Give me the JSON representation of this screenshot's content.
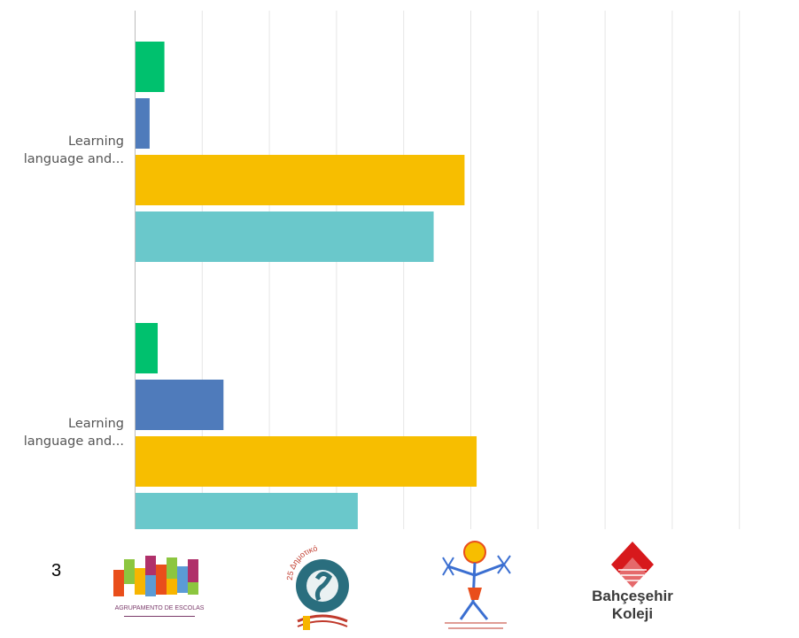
{
  "chart_data": {
    "type": "bar",
    "orientation": "horizontal",
    "categories": [
      "Learning language and...",
      "Learning language and..."
    ],
    "category_lines": [
      [
        "Learning",
        "language and..."
      ],
      [
        "Learning",
        "language and..."
      ]
    ],
    "series": [
      {
        "values": [
          0.43,
          0.33
        ],
        "color": "#00c16e"
      },
      {
        "values": [
          0.21,
          1.31
        ],
        "color": "#4f7bbb"
      },
      {
        "values": [
          4.9,
          5.08
        ],
        "color": "#f7be00"
      },
      {
        "values": [
          4.44,
          3.31
        ],
        "color": "#6ac8cb"
      }
    ],
    "xlim": [
      0,
      9
    ],
    "grid": true,
    "legend": "none"
  },
  "footer": {
    "page_number": "3",
    "logos": [
      {
        "name": "agrupamento-logo",
        "text": "AGRUPAMENTO DE ESCOLAS"
      },
      {
        "name": "school-circle-logo",
        "text": "25 Δημοτικό"
      },
      {
        "name": "child-drawing-logo",
        "text": ""
      },
      {
        "name": "bahcesehir-logo",
        "text_line1": "Bahçeşehir",
        "text_line2": "Koleji"
      }
    ]
  }
}
